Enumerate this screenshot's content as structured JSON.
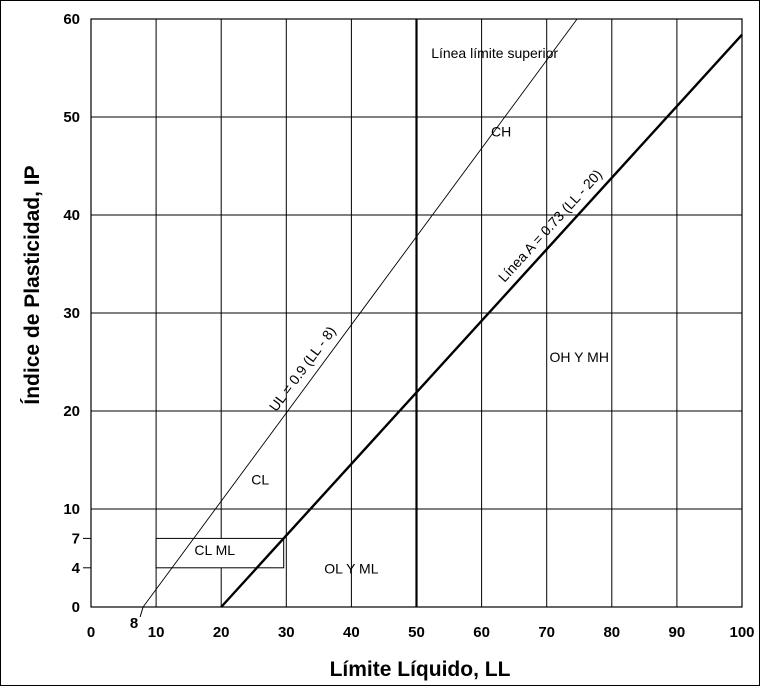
{
  "chart_data": {
    "type": "line",
    "xlabel": "Límite Líquido, LL",
    "ylabel": "Índice de Plasticidad, IP",
    "xlim": [
      0,
      100
    ],
    "ylim": [
      0,
      60
    ],
    "grid": true,
    "x_ticks": [
      "0",
      "10",
      "20",
      "30",
      "40",
      "50",
      "60",
      "70",
      "80",
      "90",
      "100"
    ],
    "x_tick_values": [
      0,
      10,
      20,
      30,
      40,
      50,
      60,
      70,
      80,
      90,
      100
    ],
    "extra_x_tick": {
      "value": 8,
      "label": "8"
    },
    "y_ticks": [
      "0",
      "4",
      "7",
      "10",
      "20",
      "30",
      "40",
      "50",
      "60"
    ],
    "y_tick_values": [
      0,
      4,
      7,
      10,
      20,
      30,
      40,
      50,
      60
    ],
    "series": [
      {
        "name": "UL = 0.9 (LL - 8)",
        "x": [
          8,
          74.67
        ],
        "y": [
          0,
          60
        ],
        "style": "thin"
      },
      {
        "name": "Línea A = 0.73 (LL - 20)",
        "x": [
          20,
          100
        ],
        "y": [
          0,
          58.4
        ],
        "style": "thick"
      }
    ],
    "emphasized_vertical": 50,
    "cl_ml_band": {
      "x": [
        10,
        29.6
      ],
      "y": [
        4,
        7
      ]
    },
    "zones": [
      {
        "label": "Línea límite superior",
        "x": 62,
        "y": 56
      },
      {
        "label": "CH",
        "x": 63,
        "y": 48
      },
      {
        "label": "OH Y MH",
        "x": 75,
        "y": 25
      },
      {
        "label": "CL",
        "x": 26,
        "y": 12.5
      },
      {
        "label": "CL  ML",
        "x": 19,
        "y": 5.3
      },
      {
        "label": "OL Y ML",
        "x": 40,
        "y": 3.4
      }
    ]
  }
}
